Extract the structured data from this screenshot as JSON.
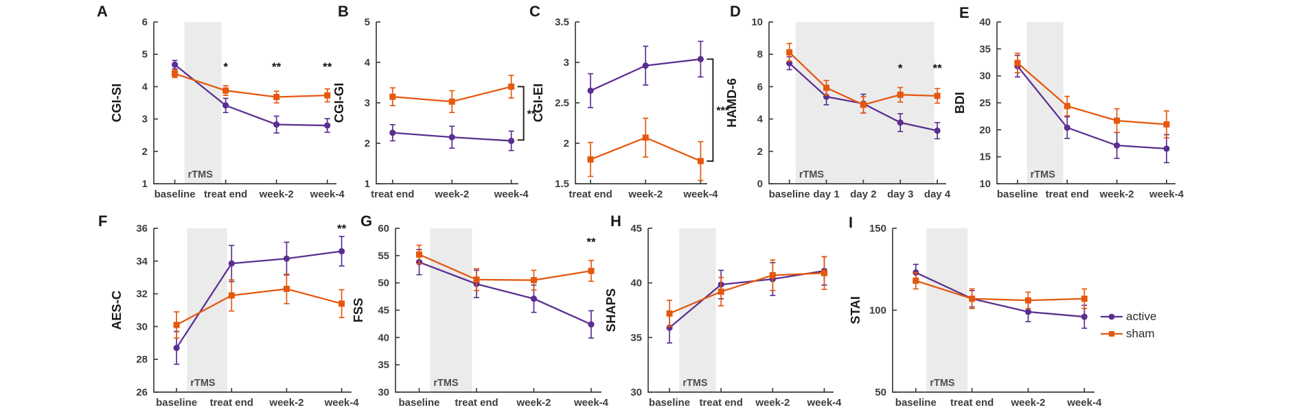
{
  "figure": {
    "background": "#ffffff",
    "colors": {
      "active": "#5b2f91",
      "sham": "#e4580e",
      "band": "#ebebeb",
      "axis": "#3d3d3d",
      "tick_text": "#3d3d3d",
      "label_text": "#1d1a1a",
      "sig_text": "#111111",
      "band_text": "#4d4d4d"
    },
    "legend": {
      "position": "right-middle",
      "items": [
        {
          "label": "active",
          "series": "active",
          "marker": "circle"
        },
        {
          "label": "sham",
          "series": "sham",
          "marker": "square"
        }
      ]
    }
  },
  "chart_data": [
    {
      "type": "line",
      "panel": "A",
      "ylabel": "CGI-SI",
      "ylim": [
        1,
        6
      ],
      "yticks": [
        1,
        2,
        3,
        4,
        5,
        6
      ],
      "categories": [
        "baseline",
        "treat end",
        "week-2",
        "week-4"
      ],
      "band": {
        "from": 0.19,
        "to": 0.92,
        "label": "rTMS"
      },
      "series": [
        {
          "name": "active",
          "marker": "circle",
          "values": [
            4.68,
            3.42,
            2.83,
            2.8
          ],
          "errors": [
            0.13,
            0.22,
            0.26,
            0.21
          ]
        },
        {
          "name": "sham",
          "marker": "square",
          "values": [
            4.4,
            3.88,
            3.68,
            3.73
          ],
          "errors": [
            0.12,
            0.15,
            0.18,
            0.2
          ]
        }
      ],
      "significance": [
        {
          "category": "treat end",
          "cat_index": 1,
          "y": 4.5,
          "label": "*"
        },
        {
          "category": "week-2",
          "cat_index": 2,
          "y": 4.5,
          "label": "**"
        },
        {
          "category": "week-4",
          "cat_index": 3,
          "y": 4.5,
          "label": "**"
        }
      ],
      "bracket": null
    },
    {
      "type": "line",
      "panel": "B",
      "ylabel": "CGI-GI",
      "ylim": [
        1,
        5
      ],
      "yticks": [
        1,
        2,
        3,
        4,
        5
      ],
      "categories": [
        "treat end",
        "week-2",
        "week-4"
      ],
      "band": null,
      "series": [
        {
          "name": "active",
          "marker": "circle",
          "values": [
            2.26,
            2.15,
            2.06
          ],
          "errors": [
            0.2,
            0.27,
            0.24
          ]
        },
        {
          "name": "sham",
          "marker": "square",
          "values": [
            3.15,
            3.03,
            3.4
          ],
          "errors": [
            0.22,
            0.27,
            0.28
          ]
        }
      ],
      "significance": [],
      "bracket": {
        "y_top": 3.4,
        "y_bottom": 2.08,
        "label": "**"
      }
    },
    {
      "type": "line",
      "panel": "C",
      "ylabel": "CGI-EI",
      "ylim": [
        1.5,
        3.5
      ],
      "yticks": [
        1.5,
        2,
        2.5,
        3,
        3.5
      ],
      "categories": [
        "treat end",
        "week-2",
        "week-4"
      ],
      "band": null,
      "series": [
        {
          "name": "active",
          "marker": "circle",
          "values": [
            2.65,
            2.96,
            3.04
          ],
          "errors": [
            0.21,
            0.24,
            0.22
          ]
        },
        {
          "name": "sham",
          "marker": "square",
          "values": [
            1.8,
            2.07,
            1.78
          ],
          "errors": [
            0.21,
            0.24,
            0.24
          ]
        }
      ],
      "significance": [],
      "bracket": {
        "y_top": 3.04,
        "y_bottom": 1.78,
        "label": "***"
      }
    },
    {
      "type": "line",
      "panel": "D",
      "ylabel": "HAMD-6",
      "ylim": [
        0,
        10
      ],
      "yticks": [
        0,
        2,
        4,
        6,
        8,
        10
      ],
      "categories": [
        "baseline",
        "day 1",
        "day 2",
        "day 3",
        "day 4"
      ],
      "band": {
        "from": 0.17,
        "to": 3.92,
        "label": "rTMS"
      },
      "series": [
        {
          "name": "active",
          "marker": "circle",
          "values": [
            7.45,
            5.38,
            4.95,
            3.78,
            3.28
          ],
          "errors": [
            0.4,
            0.5,
            0.58,
            0.55,
            0.5
          ]
        },
        {
          "name": "sham",
          "marker": "square",
          "values": [
            8.12,
            5.93,
            4.88,
            5.5,
            5.43
          ],
          "errors": [
            0.55,
            0.45,
            0.5,
            0.45,
            0.45
          ]
        }
      ],
      "significance": [
        {
          "category": "day 3",
          "cat_index": 3,
          "y": 6.9,
          "label": "*"
        },
        {
          "category": "day 4",
          "cat_index": 4,
          "y": 6.9,
          "label": "**"
        }
      ],
      "bracket": null
    },
    {
      "type": "line",
      "panel": "E",
      "ylabel": "BDI",
      "ylim": [
        10,
        40
      ],
      "yticks": [
        10,
        15,
        20,
        25,
        30,
        35,
        40
      ],
      "categories": [
        "baseline",
        "treat end",
        "week-2",
        "week-4"
      ],
      "band": {
        "from": 0.19,
        "to": 0.92,
        "label": "rTMS"
      },
      "series": [
        {
          "name": "active",
          "marker": "circle",
          "values": [
            31.8,
            20.4,
            17.1,
            16.5
          ],
          "errors": [
            2.0,
            2.0,
            2.4,
            2.6
          ]
        },
        {
          "name": "sham",
          "marker": "square",
          "values": [
            32.4,
            24.4,
            21.7,
            21.0
          ],
          "errors": [
            1.8,
            1.8,
            2.2,
            2.5
          ]
        }
      ],
      "significance": [],
      "bracket": null
    },
    {
      "type": "line",
      "panel": "F",
      "ylabel": "AES-C",
      "ylim": [
        26,
        36
      ],
      "yticks": [
        26,
        28,
        30,
        32,
        34,
        36
      ],
      "categories": [
        "baseline",
        "treat end",
        "week-2",
        "week-4"
      ],
      "band": {
        "from": 0.19,
        "to": 0.92,
        "label": "rTMS"
      },
      "series": [
        {
          "name": "active",
          "marker": "circle",
          "values": [
            28.7,
            33.85,
            34.15,
            34.6
          ],
          "errors": [
            1.0,
            1.1,
            1.0,
            0.9
          ]
        },
        {
          "name": "sham",
          "marker": "square",
          "values": [
            30.1,
            31.9,
            32.3,
            31.4
          ],
          "errors": [
            0.8,
            0.95,
            0.9,
            0.85
          ]
        }
      ],
      "significance": [
        {
          "category": "week-4",
          "cat_index": 3,
          "y": 35.75,
          "label": "**"
        }
      ],
      "bracket": null
    },
    {
      "type": "line",
      "panel": "G",
      "ylabel": "FSS",
      "ylim": [
        30,
        60
      ],
      "yticks": [
        30,
        35,
        40,
        45,
        50,
        55,
        60
      ],
      "categories": [
        "baseline",
        "treat end",
        "week-2",
        "week-4"
      ],
      "band": {
        "from": 0.19,
        "to": 0.92,
        "label": "rTMS"
      },
      "series": [
        {
          "name": "active",
          "marker": "circle",
          "values": [
            53.8,
            49.8,
            47.1,
            42.4
          ],
          "errors": [
            2.3,
            2.5,
            2.5,
            2.5
          ]
        },
        {
          "name": "sham",
          "marker": "square",
          "values": [
            55.2,
            50.6,
            50.5,
            52.2
          ],
          "errors": [
            1.7,
            2.0,
            1.8,
            1.9
          ]
        }
      ],
      "significance": [
        {
          "category": "week-4",
          "cat_index": 3,
          "y": 56.8,
          "label": "**"
        }
      ],
      "bracket": null
    },
    {
      "type": "line",
      "panel": "H",
      "ylabel": "SHAPS",
      "ylim": [
        30,
        45
      ],
      "yticks": [
        30,
        35,
        40,
        45
      ],
      "categories": [
        "baseline",
        "treat end",
        "week-2",
        "week-4"
      ],
      "band": {
        "from": 0.19,
        "to": 0.9,
        "label": "rTMS"
      },
      "series": [
        {
          "name": "active",
          "marker": "circle",
          "values": [
            35.9,
            39.85,
            40.35,
            41.1
          ],
          "errors": [
            1.4,
            1.3,
            1.5,
            1.3
          ]
        },
        {
          "name": "sham",
          "marker": "square",
          "values": [
            37.2,
            39.2,
            40.7,
            40.9
          ],
          "errors": [
            1.2,
            1.3,
            1.4,
            1.5
          ]
        }
      ],
      "significance": [],
      "bracket": null
    },
    {
      "type": "line",
      "panel": "I",
      "ylabel": "STAI",
      "ylim": [
        50,
        150
      ],
      "yticks": [
        50,
        100,
        150
      ],
      "categories": [
        "baseline",
        "treat end",
        "week-2",
        "week-4"
      ],
      "band": {
        "from": 0.19,
        "to": 0.92,
        "label": "rTMS"
      },
      "series": [
        {
          "name": "active",
          "marker": "circle",
          "values": [
            123,
            107,
            99,
            96
          ],
          "errors": [
            5,
            5,
            6,
            7
          ]
        },
        {
          "name": "sham",
          "marker": "square",
          "values": [
            118,
            107,
            106,
            107
          ],
          "errors": [
            5,
            6,
            5,
            6
          ]
        }
      ],
      "significance": [],
      "bracket": null
    }
  ]
}
